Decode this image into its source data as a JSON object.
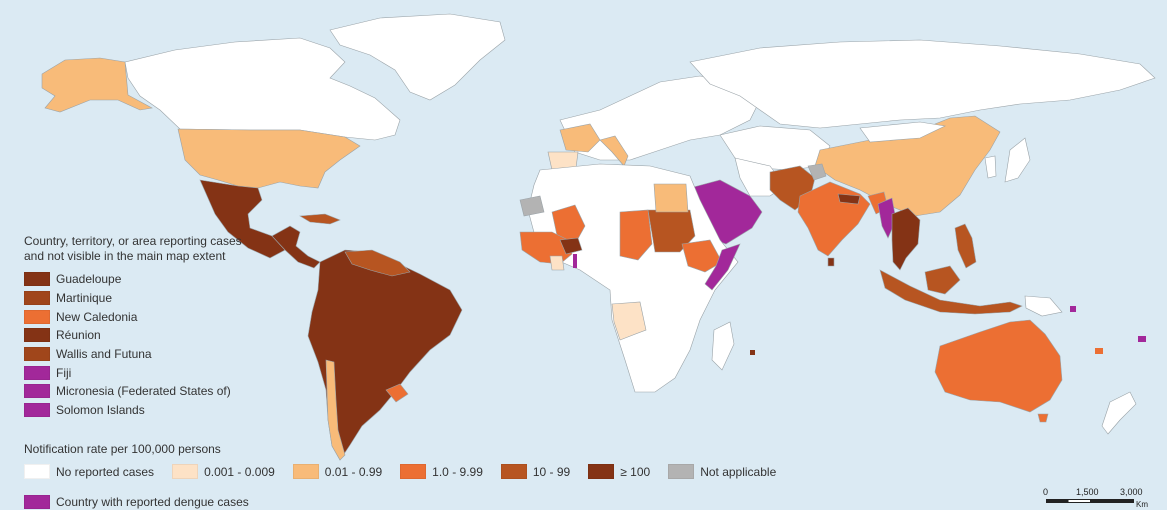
{
  "colors": {
    "ocean": "#dbeaf3",
    "no_cases": "#ffffff",
    "rate_0001_0009": "#fde2c6",
    "rate_001_099": "#f8bb79",
    "rate_1_999": "#ec6f33",
    "rate_10_99": "#b75521",
    "rate_ge_100": "#843315",
    "not_applicable": "#b3b3b3",
    "dengue_reported": "#a2289a",
    "border": "#9aa3a8"
  },
  "inset": {
    "title_line1": "Country, territory, or area reporting cases",
    "title_line2": "and not visible in the main map extent",
    "items": [
      {
        "label": "Guadeloupe",
        "color": "#843315"
      },
      {
        "label": "Martinique",
        "color": "#a0461b"
      },
      {
        "label": "New Caledonia",
        "color": "#ec6f33"
      },
      {
        "label": "Réunion",
        "color": "#843315"
      },
      {
        "label": "Wallis and Futuna",
        "color": "#a0461b"
      },
      {
        "label": "Fiji",
        "color": "#a2289a"
      },
      {
        "label": "Micronesia (Federated States of)",
        "color": "#a2289a"
      },
      {
        "label": "Solomon Islands",
        "color": "#a2289a"
      }
    ]
  },
  "legend": {
    "title": "Notification rate per 100,000 persons",
    "classes": [
      {
        "label": "No reported cases",
        "color": "#ffffff"
      },
      {
        "label": "0.001 - 0.009",
        "color": "#fde2c6"
      },
      {
        "label": "0.01 - 0.99",
        "color": "#f8bb79"
      },
      {
        "label": "1.0 - 9.99",
        "color": "#ec6f33"
      },
      {
        "label": "10 - 99",
        "color": "#b75521"
      },
      {
        "label": "≥ 100",
        "color": "#843315"
      },
      {
        "label": "Not applicable",
        "color": "#b3b3b3"
      }
    ],
    "dengue_label": "Country with reported dengue cases",
    "dengue_color": "#a2289a"
  },
  "scale": {
    "ticks": [
      "0",
      "1,500",
      "3,000"
    ],
    "unit": "Km"
  }
}
